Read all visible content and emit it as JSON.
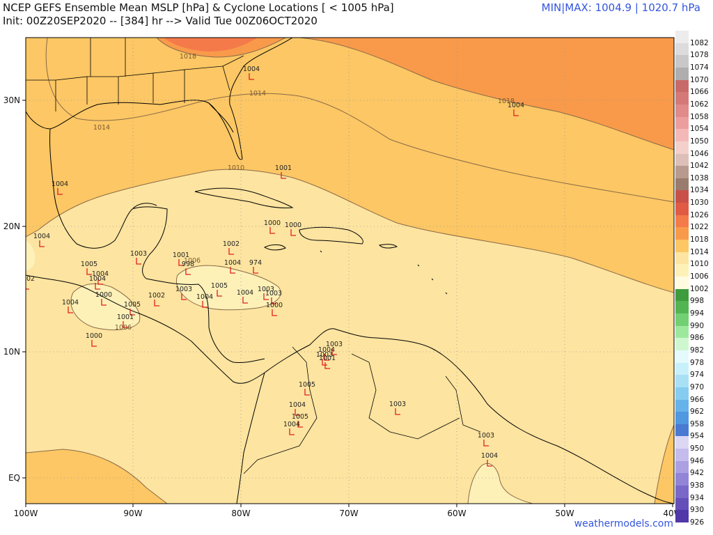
{
  "header": {
    "title_line1": "NCEP GEFS Ensemble Mean MSLP [hPa] & Cyclone Locations [ < 1005 hPa]",
    "title_line2": "Init: 00Z20SEP2020 -- [384] hr --> Valid Tue 00Z06OCT2020",
    "minmax": "MIN|MAX: 1004.9 | 1020.7 hPa"
  },
  "credit": "weathermodels.com",
  "axes": {
    "x_ticks": [
      "100W",
      "90W",
      "80W",
      "70W",
      "60W",
      "50W",
      "40W"
    ],
    "y_ticks": [
      "30N",
      "20N",
      "10N",
      "EQ"
    ]
  },
  "colors": {
    "fill_1006": "#fdf1b8",
    "fill_1010": "#fde4a0",
    "fill_1014": "#fcc764",
    "fill_1018": "#f89a4a",
    "fill_1022": "#f57a4a",
    "coast": "#000000",
    "isobar": "#8a6a48",
    "cyclone": "#e02020",
    "grid": "#999999"
  },
  "isobar_labels": [
    {
      "text": "1018",
      "x": 270,
      "y": 84
    },
    {
      "text": "1014",
      "x": 370,
      "y": 137
    },
    {
      "text": "1014",
      "x": 146,
      "y": 186
    },
    {
      "text": "1010",
      "x": 339,
      "y": 244
    },
    {
      "text": "1018",
      "x": 727,
      "y": 148
    },
    {
      "text": "1006",
      "x": 276,
      "y": 377
    },
    {
      "text": "1006",
      "x": 177,
      "y": 473
    }
  ],
  "cyclones": [
    {
      "p": "1004",
      "x": 361,
      "y": 103
    },
    {
      "p": "1004",
      "x": 741,
      "y": 155
    },
    {
      "p": "1001",
      "x": 407,
      "y": 245
    },
    {
      "p": "1004",
      "x": 86,
      "y": 268
    },
    {
      "p": "1000",
      "x": 391,
      "y": 324
    },
    {
      "p": "1000",
      "x": 421,
      "y": 327
    },
    {
      "p": "1004",
      "x": 60,
      "y": 343
    },
    {
      "p": "1002",
      "x": 332,
      "y": 354
    },
    {
      "p": "1003",
      "x": 199,
      "y": 368
    },
    {
      "p": "1001",
      "x": 260,
      "y": 370
    },
    {
      "p": "998",
      "x": 270,
      "y": 383
    },
    {
      "p": "1004",
      "x": 334,
      "y": 381
    },
    {
      "p": "974",
      "x": 367,
      "y": 381
    },
    {
      "p": "1005",
      "x": 128,
      "y": 383
    },
    {
      "p": "1004",
      "x": 144,
      "y": 397
    },
    {
      "p": "1004",
      "x": 140,
      "y": 404
    },
    {
      "p": "1002",
      "x": 38,
      "y": 404
    },
    {
      "p": "1005",
      "x": 315,
      "y": 414
    },
    {
      "p": "1003",
      "x": 264,
      "y": 419
    },
    {
      "p": "1003",
      "x": 382,
      "y": 419
    },
    {
      "p": "1004",
      "x": 352,
      "y": 424
    },
    {
      "p": "1003",
      "x": 393,
      "y": 425
    },
    {
      "p": "1002",
      "x": 225,
      "y": 428
    },
    {
      "p": "1004",
      "x": 294,
      "y": 430
    },
    {
      "p": "1000",
      "x": 149,
      "y": 427
    },
    {
      "p": "1004",
      "x": 101,
      "y": 438
    },
    {
      "p": "1000",
      "x": 394,
      "y": 442
    },
    {
      "p": "1005",
      "x": 190,
      "y": 441
    },
    {
      "p": "1001",
      "x": 180,
      "y": 459
    },
    {
      "p": "1000",
      "x": 135,
      "y": 486
    },
    {
      "p": "1003",
      "x": 480,
      "y": 498
    },
    {
      "p": "1004",
      "x": 469,
      "y": 506
    },
    {
      "p": "1003",
      "x": 466,
      "y": 513
    },
    {
      "p": "1001",
      "x": 470,
      "y": 518
    },
    {
      "p": "1005",
      "x": 441,
      "y": 556
    },
    {
      "p": "1003",
      "x": 571,
      "y": 584
    },
    {
      "p": "1004",
      "x": 427,
      "y": 585
    },
    {
      "p": "1005",
      "x": 431,
      "y": 602
    },
    {
      "p": "1004",
      "x": 419,
      "y": 613
    },
    {
      "p": "1003",
      "x": 698,
      "y": 629
    },
    {
      "p": "1004",
      "x": 703,
      "y": 658
    }
  ],
  "legend": [
    {
      "label": "1082",
      "color": "#ececec"
    },
    {
      "label": "1078",
      "color": "#dcdcdc"
    },
    {
      "label": "1074",
      "color": "#c8c8c8"
    },
    {
      "label": "1070",
      "color": "#aeaeae"
    },
    {
      "label": "1066",
      "color": "#c86a6a"
    },
    {
      "label": "1062",
      "color": "#d57878"
    },
    {
      "label": "1058",
      "color": "#e08a8a"
    },
    {
      "label": "1054",
      "color": "#ec9e9e"
    },
    {
      "label": "1050",
      "color": "#f5b8b8"
    },
    {
      "label": "1046",
      "color": "#f4d0cc"
    },
    {
      "label": "1042",
      "color": "#dcc0b8"
    },
    {
      "label": "1038",
      "color": "#b89a8e"
    },
    {
      "label": "1034",
      "color": "#9a7c6e"
    },
    {
      "label": "1030",
      "color": "#c85048"
    },
    {
      "label": "1026",
      "color": "#e05a44"
    },
    {
      "label": "1022",
      "color": "#f57a4a"
    },
    {
      "label": "1018",
      "color": "#f89a4a"
    },
    {
      "label": "1014",
      "color": "#fcc764"
    },
    {
      "label": "1010",
      "color": "#fde4a0"
    },
    {
      "label": "1006",
      "color": "#fdf1b8"
    },
    {
      "label": "1002",
      "color": "#fffbe0"
    },
    {
      "label": "998",
      "color": "#3e9b3e"
    },
    {
      "label": "994",
      "color": "#52b552"
    },
    {
      "label": "990",
      "color": "#72d072"
    },
    {
      "label": "986",
      "color": "#9ee89e"
    },
    {
      "label": "982",
      "color": "#cff7cf"
    },
    {
      "label": "978",
      "color": "#e4fafc"
    },
    {
      "label": "974",
      "color": "#c8f0fa"
    },
    {
      "label": "970",
      "color": "#a8e0f6"
    },
    {
      "label": "966",
      "color": "#86ccf0"
    },
    {
      "label": "962",
      "color": "#66b2ea"
    },
    {
      "label": "958",
      "color": "#5098e0"
    },
    {
      "label": "954",
      "color": "#4a7ad2"
    },
    {
      "label": "950",
      "color": "#dcd8f4"
    },
    {
      "label": "946",
      "color": "#c4bcec"
    },
    {
      "label": "942",
      "color": "#aaa0e2"
    },
    {
      "label": "938",
      "color": "#9284d6"
    },
    {
      "label": "934",
      "color": "#7a68c8"
    },
    {
      "label": "930",
      "color": "#6450b8"
    },
    {
      "label": "926",
      "color": "#5038a8"
    }
  ]
}
